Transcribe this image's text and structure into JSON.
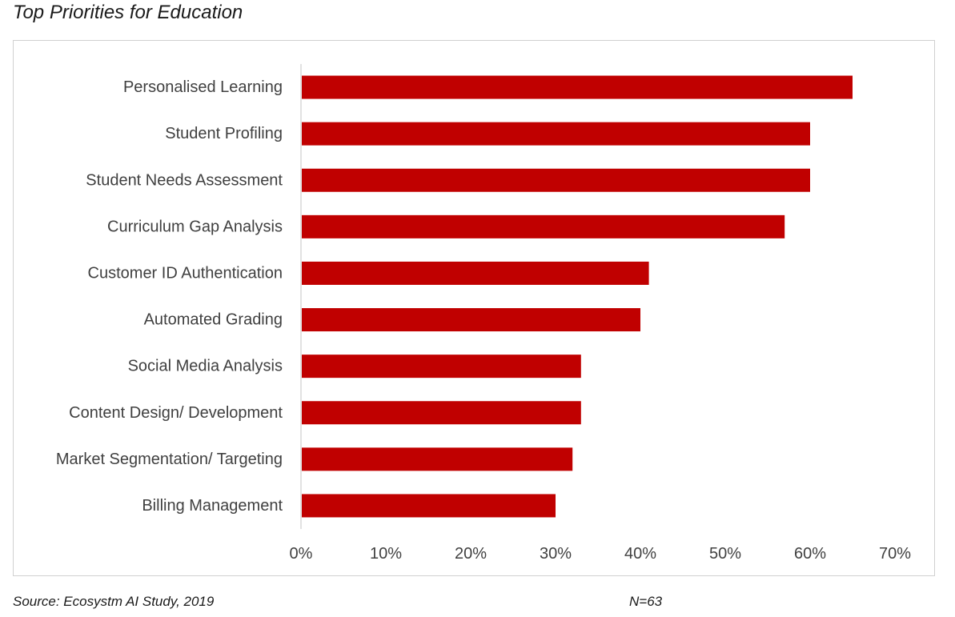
{
  "title": "Top Priorities for Education",
  "footer": {
    "source": "Source: Ecosystm AI Study, 2019",
    "n": "N=63"
  },
  "colors": {
    "bar": "#C00000",
    "axis": "#d9d9d9",
    "text": "#404040"
  },
  "chart_data": {
    "type": "bar",
    "orientation": "horizontal",
    "title": "Top Priorities for Education",
    "categories": [
      "Personalised Learning",
      "Student Profiling",
      "Student Needs Assessment",
      "Curriculum Gap Analysis",
      "Customer ID Authentication",
      "Automated Grading",
      "Social Media Analysis",
      "Content Design/ Development",
      "Market Segmentation/ Targeting",
      "Billing Management"
    ],
    "values": [
      65,
      60,
      60,
      57,
      41,
      40,
      33,
      33,
      32,
      30
    ],
    "unit": "%",
    "xlim": [
      0,
      70
    ],
    "ticks": [
      "0%",
      "10%",
      "20%",
      "30%",
      "40%",
      "50%",
      "60%",
      "70%"
    ],
    "tick_values": [
      0,
      10,
      20,
      30,
      40,
      50,
      60,
      70
    ],
    "grid": false,
    "legend": "none"
  }
}
